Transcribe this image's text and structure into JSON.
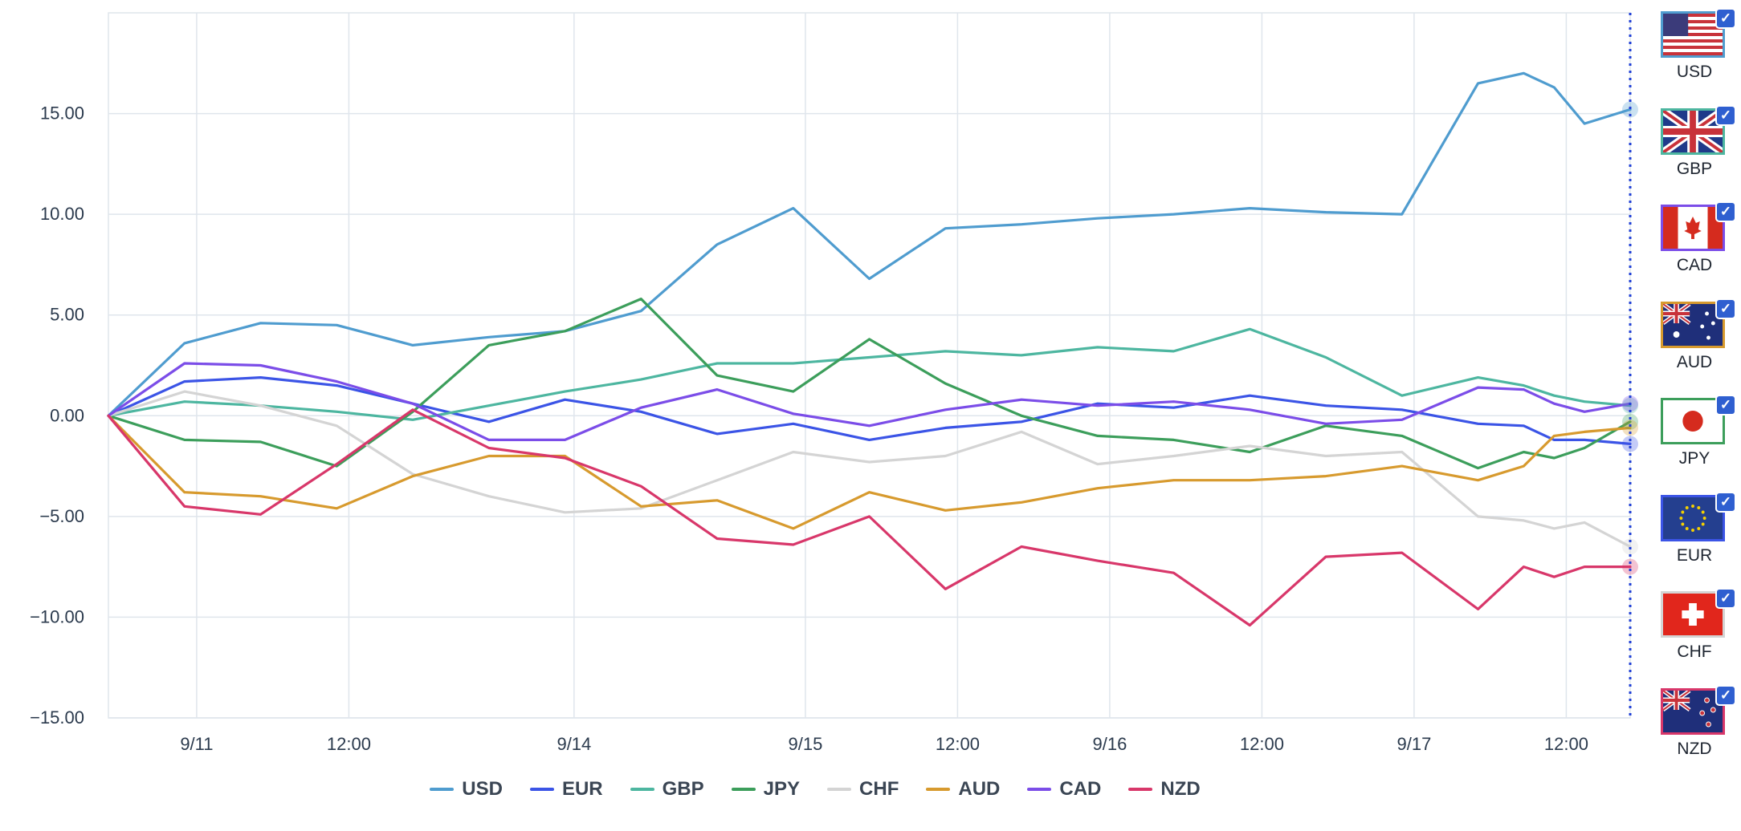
{
  "chart_data": {
    "type": "line",
    "title": "",
    "xlabel": "",
    "ylabel": "",
    "ylim": [
      -15,
      20
    ],
    "yticks": [
      15,
      10,
      5,
      0,
      -5,
      -10,
      -15
    ],
    "ytick_labels": [
      "15.00",
      "10.00",
      "5.00",
      "0.00",
      "−5.00",
      "−10.00",
      "−15.00"
    ],
    "xlim": [
      0,
      100
    ],
    "xticks": [
      {
        "label": "9/11",
        "x": 5.8
      },
      {
        "label": "12:00",
        "x": 15.8
      },
      {
        "label": "9/14",
        "x": 30.6
      },
      {
        "label": "9/15",
        "x": 45.8
      },
      {
        "label": "12:00",
        "x": 55.8
      },
      {
        "label": "9/16",
        "x": 65.8
      },
      {
        "label": "12:00",
        "x": 75.8
      },
      {
        "label": "9/17",
        "x": 85.8
      },
      {
        "label": "12:00",
        "x": 95.8
      }
    ],
    "grid": true,
    "legend_position": "bottom",
    "x": [
      0,
      5,
      10,
      15,
      20,
      25,
      30,
      35,
      40,
      45,
      50,
      55,
      60,
      65,
      70,
      75,
      80,
      85,
      90,
      93,
      95,
      97,
      100
    ],
    "series": [
      {
        "name": "USD",
        "color": "#4f9ccf",
        "values": [
          0,
          3.6,
          4.6,
          4.5,
          3.5,
          3.9,
          4.2,
          5.2,
          8.5,
          10.3,
          6.8,
          9.3,
          9.5,
          9.8,
          10.0,
          10.3,
          10.1,
          10.0,
          16.5,
          17.0,
          16.3,
          14.5,
          15.2
        ]
      },
      {
        "name": "EUR",
        "color": "#3b54e6",
        "values": [
          0,
          1.7,
          1.9,
          1.5,
          0.6,
          -0.3,
          0.8,
          0.2,
          -0.9,
          -0.4,
          -1.2,
          -0.6,
          -0.3,
          0.6,
          0.4,
          1.0,
          0.5,
          0.3,
          -0.4,
          -0.5,
          -1.2,
          -1.2,
          -1.4
        ]
      },
      {
        "name": "GBP",
        "color": "#4db6a0",
        "values": [
          0,
          0.7,
          0.5,
          0.2,
          -0.2,
          0.5,
          1.2,
          1.8,
          2.6,
          2.6,
          2.9,
          3.2,
          3.0,
          3.4,
          3.2,
          4.3,
          2.9,
          1.0,
          1.9,
          1.5,
          1.0,
          0.7,
          0.5
        ]
      },
      {
        "name": "JPY",
        "color": "#3c9e5b",
        "values": [
          0,
          -1.2,
          -1.3,
          -2.5,
          0.2,
          3.5,
          4.2,
          5.8,
          2.0,
          1.2,
          3.8,
          1.6,
          0,
          -1.0,
          -1.2,
          -1.8,
          -0.5,
          -1.0,
          -2.6,
          -1.8,
          -2.1,
          -1.6,
          -0.3
        ]
      },
      {
        "name": "CHF",
        "color": "#d4d4d4",
        "values": [
          0,
          1.2,
          0.5,
          -0.5,
          -2.9,
          -4.0,
          -4.8,
          -4.6,
          -3.2,
          -1.8,
          -2.3,
          -2.0,
          -0.8,
          -2.4,
          -2.0,
          -1.5,
          -2.0,
          -1.8,
          -5.0,
          -5.2,
          -5.6,
          -5.3,
          -6.5
        ]
      },
      {
        "name": "AUD",
        "color": "#d79a2e",
        "values": [
          0,
          -3.8,
          -4.0,
          -4.6,
          -3.0,
          -2.0,
          -2.0,
          -4.5,
          -4.2,
          -5.6,
          -3.8,
          -4.7,
          -4.3,
          -3.6,
          -3.2,
          -3.2,
          -3.0,
          -2.5,
          -3.2,
          -2.5,
          -1.0,
          -0.8,
          -0.6
        ]
      },
      {
        "name": "CAD",
        "color": "#7b4de8",
        "values": [
          0,
          2.6,
          2.5,
          1.7,
          0.6,
          -1.2,
          -1.2,
          0.4,
          1.3,
          0.1,
          -0.5,
          0.3,
          0.8,
          0.5,
          0.7,
          0.3,
          -0.4,
          -0.2,
          1.4,
          1.3,
          0.6,
          0.2,
          0.6
        ]
      },
      {
        "name": "NZD",
        "color": "#d8376a",
        "values": [
          0,
          -4.5,
          -4.9,
          -2.4,
          0.3,
          -1.6,
          -2.1,
          -3.5,
          -6.1,
          -6.4,
          -5.0,
          -8.6,
          -6.5,
          -7.2,
          -7.8,
          -10.4,
          -7.0,
          -6.8,
          -9.6,
          -7.5,
          -8.0,
          -7.5,
          -7.5
        ]
      }
    ]
  },
  "sidebar": [
    {
      "code": "USD",
      "color": "#4f9ccf",
      "flag": "us-flag-icon"
    },
    {
      "code": "GBP",
      "color": "#4db6a0",
      "flag": "uk-flag-icon"
    },
    {
      "code": "CAD",
      "color": "#7b4de8",
      "flag": "canada-flag-icon"
    },
    {
      "code": "AUD",
      "color": "#d79a2e",
      "flag": "australia-flag-icon"
    },
    {
      "code": "JPY",
      "color": "#3c9e5b",
      "flag": "japan-flag-icon"
    },
    {
      "code": "EUR",
      "color": "#3b54e6",
      "flag": "eu-flag-icon"
    },
    {
      "code": "CHF",
      "color": "#d4d4d4",
      "flag": "switzerland-flag-icon"
    },
    {
      "code": "NZD",
      "color": "#d8376a",
      "flag": "new-zealand-flag-icon"
    }
  ],
  "checkbox_glyph": "✓",
  "cursor_line_color": "#1f3fd6"
}
